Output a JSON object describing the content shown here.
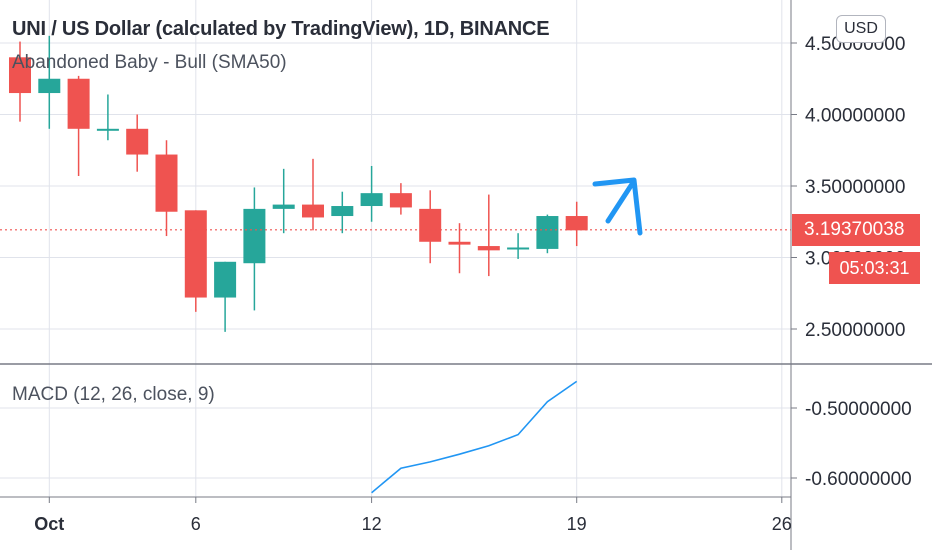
{
  "header": {
    "title": "UNI / US Dollar (calculated by TradingView), 1D, BINANCE",
    "indicator_label": "Abandoned Baby - Bull (SMA50)",
    "currency_button": "USD"
  },
  "price_tag": {
    "price": "3.19370038",
    "countdown": "05:03:31"
  },
  "macd": {
    "label": "MACD (12, 26, close, 9)"
  },
  "colors": {
    "up": "#26a69a",
    "down": "#ef5350",
    "macd_line": "#2196f3",
    "arrow": "#2196f3",
    "grid": "#e0e3eb",
    "axis_text": "#2a2e39"
  },
  "chart_data": [
    {
      "type": "candlestick",
      "x_ticks": [
        {
          "day": 1,
          "label": "Oct"
        },
        {
          "day": 6,
          "label": "6"
        },
        {
          "day": 12,
          "label": "12"
        },
        {
          "day": 19,
          "label": "19"
        },
        {
          "day": 26,
          "label": "26"
        }
      ],
      "y_ticks": [
        "4.50000000",
        "4.00000000",
        "3.50000000",
        "3.00000000",
        "2.50000000"
      ],
      "last_price": 3.1937,
      "candles": [
        {
          "day": 0,
          "open": 4.4,
          "high": 4.51,
          "low": 3.95,
          "close": 4.15
        },
        {
          "day": 1,
          "open": 4.15,
          "high": 4.55,
          "low": 3.9,
          "close": 4.25
        },
        {
          "day": 2,
          "open": 4.25,
          "high": 4.27,
          "low": 3.57,
          "close": 3.9
        },
        {
          "day": 3,
          "open": 3.89,
          "high": 4.14,
          "low": 3.82,
          "close": 3.9
        },
        {
          "day": 4,
          "open": 3.9,
          "high": 4.0,
          "low": 3.6,
          "close": 3.72
        },
        {
          "day": 5,
          "open": 3.72,
          "high": 3.82,
          "low": 3.15,
          "close": 3.32
        },
        {
          "day": 6,
          "open": 3.33,
          "high": 3.33,
          "low": 2.62,
          "close": 2.72
        },
        {
          "day": 7,
          "open": 2.72,
          "high": 2.97,
          "low": 2.48,
          "close": 2.97
        },
        {
          "day": 8,
          "open": 2.96,
          "high": 3.49,
          "low": 2.63,
          "close": 3.34
        },
        {
          "day": 9,
          "open": 3.34,
          "high": 3.62,
          "low": 3.17,
          "close": 3.37
        },
        {
          "day": 10,
          "open": 3.37,
          "high": 3.69,
          "low": 3.19,
          "close": 3.28
        },
        {
          "day": 11,
          "open": 3.29,
          "high": 3.46,
          "low": 3.17,
          "close": 3.36
        },
        {
          "day": 12,
          "open": 3.36,
          "high": 3.64,
          "low": 3.25,
          "close": 3.45
        },
        {
          "day": 13,
          "open": 3.45,
          "high": 3.52,
          "low": 3.3,
          "close": 3.35
        },
        {
          "day": 14,
          "open": 3.34,
          "high": 3.47,
          "low": 2.96,
          "close": 3.11
        },
        {
          "day": 15,
          "open": 3.11,
          "high": 3.24,
          "low": 2.89,
          "close": 3.09
        },
        {
          "day": 16,
          "open": 3.08,
          "high": 3.44,
          "low": 2.87,
          "close": 3.05
        },
        {
          "day": 17,
          "open": 3.06,
          "high": 3.17,
          "low": 2.99,
          "close": 3.07
        },
        {
          "day": 18,
          "open": 3.06,
          "high": 3.3,
          "low": 3.03,
          "close": 3.29
        },
        {
          "day": 19,
          "open": 3.29,
          "high": 3.39,
          "low": 3.08,
          "close": 3.19
        }
      ]
    },
    {
      "type": "line",
      "name": "MACD",
      "y_ticks": [
        "-0.50000000",
        "-0.60000000"
      ],
      "points": [
        {
          "day": 12,
          "value": -0.621
        },
        {
          "day": 13,
          "value": -0.586
        },
        {
          "day": 14,
          "value": -0.577
        },
        {
          "day": 15,
          "value": -0.566
        },
        {
          "day": 16,
          "value": -0.554
        },
        {
          "day": 17,
          "value": -0.538
        },
        {
          "day": 18,
          "value": -0.491
        },
        {
          "day": 19,
          "value": -0.462
        }
      ]
    }
  ]
}
